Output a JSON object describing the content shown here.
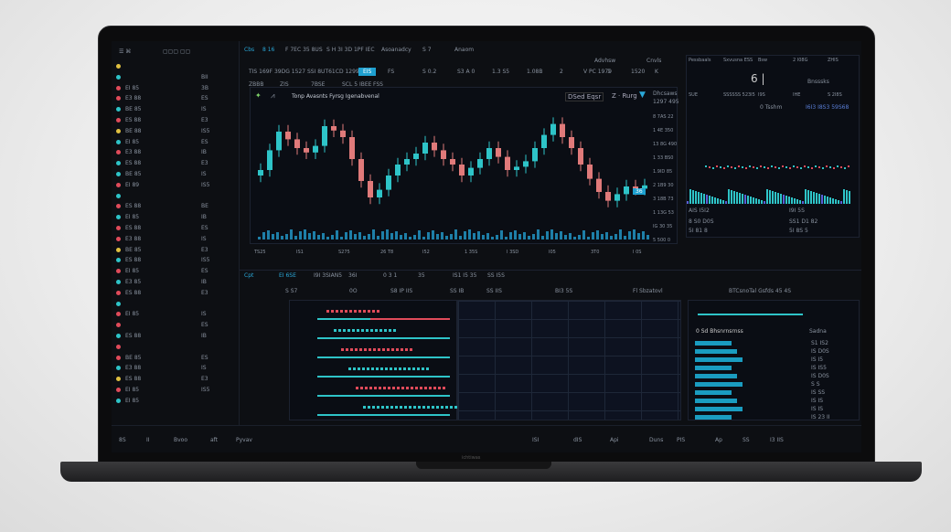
{
  "topbar": {
    "items": [
      "Cbs",
      "8 16",
      "F 7EC 35 8US",
      "S H 3I 3D 1PF IEC",
      "Asoanadcy",
      "S 7",
      "Anaom"
    ],
    "right": [
      "Advhsw",
      "Cnvls"
    ]
  },
  "toolbar": {
    "left": "TIS 169F 39DG 1527 SSI 8UT61CD 1299",
    "active": "EIS",
    "items": [
      "FS",
      "S 0.2",
      "S3 A 0",
      "1.3 S5",
      "1.08B"
    ],
    "right": [
      "2",
      "V PC 1979",
      "1",
      "1520",
      "K"
    ]
  },
  "subtoolbar": [
    "ZBBB",
    "ZIS",
    "7BSE",
    "SCL 5 IBEE",
    "FSS"
  ],
  "chart": {
    "title": "Tonp Avasnts Fyrsg Igenabvenal",
    "actions": [
      "DSed Eqsr",
      "Z · Rurg"
    ],
    "right_label": [
      "Dhcsaws",
      "1297 495"
    ],
    "closes": [
      50,
      68,
      85,
      78,
      70,
      66,
      72,
      90,
      86,
      80,
      60,
      40,
      25,
      32,
      45,
      55,
      60,
      65,
      75,
      68,
      60,
      55,
      45,
      52,
      60,
      70,
      62,
      50,
      53,
      58,
      70,
      82,
      92,
      80,
      70,
      55,
      42,
      30,
      22,
      28,
      35,
      33,
      36
    ],
    "price_ticks": [
      "8 7AS 22",
      "1 4E 350",
      "13 8G 490",
      "1 33 BS0",
      "1.9ID 85",
      "2 1B9 30",
      "3 18B 73",
      "1 13G 53",
      "IG 30 35",
      "5 500 0"
    ],
    "time_ticks": [
      "TS25",
      "IS1",
      "S275",
      "26 T8",
      "I52",
      "1 35S",
      "I 3SD",
      "I05",
      "3T0",
      "I 0S"
    ],
    "up_color": "#2ec4c8",
    "down_color": "#e07a7a"
  },
  "chart_footer": [
    "Cpt",
    "EI 6SE",
    "I9I 3SIAN5",
    "36I",
    "0 3 1",
    "35",
    "IS1 I5 35",
    "SS I5S"
  ],
  "sidebar": {
    "rows": [
      {
        "c": "#e0c040",
        "a": "",
        "b": ""
      },
      {
        "c": "#2ec4c8",
        "a": "",
        "b": "BII"
      },
      {
        "c": "#e04b5a",
        "a": "EI 85",
        "b": "3B"
      },
      {
        "c": "#e04b5a",
        "a": "E3 88",
        "b": "ES"
      },
      {
        "c": "#2ec4c8",
        "a": "BE 85",
        "b": "IS"
      },
      {
        "c": "#e04b5a",
        "a": "ES 88",
        "b": "E3"
      },
      {
        "c": "#e0c040",
        "a": "BE 88",
        "b": "IS5"
      },
      {
        "c": "#2ec4c8",
        "a": "EI 85",
        "b": "ES"
      },
      {
        "c": "#e04b5a",
        "a": "E3 88",
        "b": "IB"
      },
      {
        "c": "#2ec4c8",
        "a": "ES 88",
        "b": "E3"
      },
      {
        "c": "#2ec4c8",
        "a": "BE 85",
        "b": "IS"
      },
      {
        "c": "#e04b5a",
        "a": "EI 89",
        "b": "IS5"
      },
      {
        "c": "#2ec4c8",
        "a": "",
        "b": ""
      },
      {
        "c": "#e04b5a",
        "a": "ES 88",
        "b": "BE"
      },
      {
        "c": "#2ec4c8",
        "a": "EI 85",
        "b": "IB"
      },
      {
        "c": "#e04b5a",
        "a": "ES 88",
        "b": "ES"
      },
      {
        "c": "#e04b5a",
        "a": "E3 88",
        "b": "IS"
      },
      {
        "c": "#e0c040",
        "a": "BE 85",
        "b": "E3"
      },
      {
        "c": "#2ec4c8",
        "a": "ES 88",
        "b": "IS5"
      },
      {
        "c": "#e04b5a",
        "a": "EI 85",
        "b": "ES"
      },
      {
        "c": "#2ec4c8",
        "a": "E3 85",
        "b": "IB"
      },
      {
        "c": "#e04b5a",
        "a": "ES 88",
        "b": "E3"
      },
      {
        "c": "#2ec4c8",
        "a": "",
        "b": ""
      },
      {
        "c": "#e04b5a",
        "a": "EI 85",
        "b": "IS"
      },
      {
        "c": "#e04b5a",
        "a": "",
        "b": "ES"
      },
      {
        "c": "#2ec4c8",
        "a": "ES 88",
        "b": "IB"
      },
      {
        "c": "#e04b5a",
        "a": "",
        "b": ""
      },
      {
        "c": "#e04b5a",
        "a": "BE 85",
        "b": "ES"
      },
      {
        "c": "#2ec4c8",
        "a": "E3 88",
        "b": "IS"
      },
      {
        "c": "#e0c040",
        "a": "ES 88",
        "b": "E3"
      },
      {
        "c": "#e04b5a",
        "a": "EI 85",
        "b": "IS5"
      },
      {
        "c": "#2ec4c8",
        "a": "EI 85",
        "b": ""
      }
    ]
  },
  "right_panel": {
    "header": [
      "Pessbaals",
      "Sxvusna ESS",
      "Bsw",
      "2 I08G",
      "ZHIS",
      "SUE",
      "SSSSSS 523I5",
      "I9S",
      "IHE",
      "S 2I8S"
    ],
    "big": "6 |",
    "label": "Bnsssks",
    "row1": [
      "0 Tsshm",
      "I6I3 I8S3 59S68"
    ],
    "footer": [
      "AIS I5I2",
      "I9I 5S"
    ],
    "stats": [
      "8 S0 D0S",
      "SS1 D1 82",
      "5I 81 8",
      "5I 8S 5"
    ]
  },
  "mid_toolbar": [
    "S S7",
    "0O",
    "S8 IP IIS",
    "SS IB",
    "SS IIS",
    "BI3 5S",
    "Fl Sbzatovl",
    "BTCsnoTal Gsfds 45 4S"
  ],
  "right_bottom": {
    "title": "0 Sd Bhsnrnsrnss",
    "col": "Sadna",
    "rows": [
      "S1 IS2",
      "IS D0S",
      "IS I5",
      "IS IS5",
      "IS D0S",
      "S S",
      "IS SS",
      "IS IS",
      "IS IS",
      "IS 23 II"
    ]
  },
  "bottom_bar": [
    "8S",
    "II",
    "Bvoo",
    "aft",
    "Pyvav",
    "ISI",
    "dIS",
    "Api",
    "Duns",
    "PIS",
    "Ap",
    "SS",
    "I3 IIS"
  ],
  "laptop_brand": "ichtiwas"
}
